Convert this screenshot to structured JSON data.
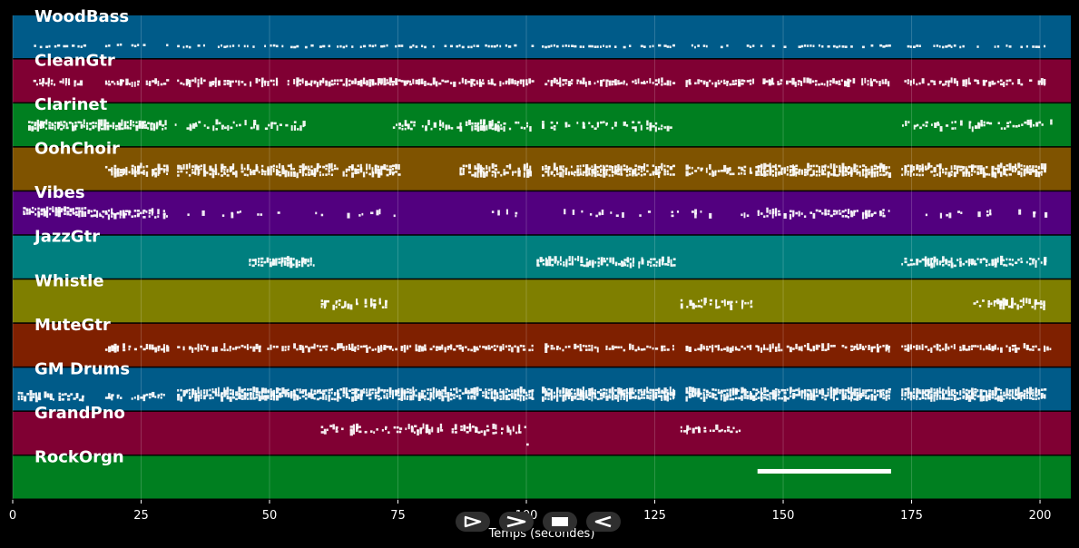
{
  "chart_data": {
    "type": "piano-roll",
    "xlabel": "Temps (secondes)",
    "xlim": [
      0,
      206
    ],
    "xticks": [
      0,
      25,
      50,
      75,
      100,
      125,
      150,
      175,
      200
    ],
    "grid": true,
    "note_color": "#ffffff",
    "tracks": [
      {
        "name": "WoodBass",
        "color": "#005b89",
        "segments": [
          [
            3,
            14,
            0.7,
            1,
            0.4
          ],
          [
            18,
            30,
            0.68,
            1,
            0.5
          ],
          [
            32,
            101,
            0.7,
            1,
            0.55
          ],
          [
            103,
            129,
            0.7,
            1,
            0.5
          ],
          [
            131,
            145,
            0.7,
            1,
            0.5
          ],
          [
            145,
            171,
            0.7,
            1,
            0.5
          ],
          [
            173,
            201,
            0.7,
            1,
            0.5
          ]
        ]
      },
      {
        "name": "CleanGtr",
        "color": "#800033",
        "segments": [
          [
            4,
            14,
            0.52,
            2,
            0.6
          ],
          [
            18,
            30,
            0.52,
            2,
            0.65
          ],
          [
            32,
            101,
            0.52,
            2,
            0.65
          ],
          [
            103,
            129,
            0.52,
            2,
            0.7
          ],
          [
            131,
            145,
            0.52,
            2,
            0.65
          ],
          [
            146,
            171,
            0.52,
            2,
            0.65
          ],
          [
            173,
            201,
            0.52,
            2,
            0.65
          ]
        ]
      },
      {
        "name": "Clarinet",
        "color": "#007f20",
        "segments": [
          [
            3,
            30,
            0.5,
            3,
            0.8
          ],
          [
            31,
            57,
            0.5,
            3,
            0.35
          ],
          [
            74,
            101,
            0.5,
            3,
            0.5
          ],
          [
            103,
            128,
            0.5,
            3,
            0.3
          ],
          [
            172,
            202,
            0.5,
            3,
            0.3
          ]
        ]
      },
      {
        "name": "OohChoir",
        "color": "#7f5300",
        "segments": [
          [
            18,
            30,
            0.52,
            4,
            0.6
          ],
          [
            32,
            75,
            0.52,
            4,
            0.6
          ],
          [
            87,
            101,
            0.52,
            4,
            0.6
          ],
          [
            103,
            129,
            0.52,
            4,
            0.75
          ],
          [
            131,
            145,
            0.52,
            3,
            0.6
          ],
          [
            145,
            171,
            0.52,
            4,
            0.85
          ],
          [
            173,
            201,
            0.52,
            4,
            0.75
          ]
        ]
      },
      {
        "name": "Vibes",
        "color": "#52007f",
        "segments": [
          [
            2,
            14,
            0.45,
            3,
            0.95
          ],
          [
            14,
            30,
            0.5,
            3,
            0.6
          ],
          [
            34,
            75,
            0.5,
            2,
            0.12
          ],
          [
            91,
            101,
            0.5,
            2,
            0.15
          ],
          [
            105,
            145,
            0.5,
            2,
            0.12
          ],
          [
            145,
            171,
            0.5,
            3,
            0.5
          ],
          [
            176,
            201,
            0.5,
            2,
            0.12
          ]
        ]
      },
      {
        "name": "JazzGtr",
        "color": "#007f7f",
        "segments": [
          [
            46,
            59,
            0.6,
            3,
            0.7
          ],
          [
            102,
            129,
            0.6,
            3,
            0.7
          ],
          [
            173,
            201,
            0.6,
            3,
            0.7
          ]
        ]
      },
      {
        "name": "Whistle",
        "color": "#7f7f00",
        "segments": [
          [
            60,
            73,
            0.55,
            3,
            0.5
          ],
          [
            130,
            144,
            0.55,
            3,
            0.5
          ],
          [
            187,
            201,
            0.55,
            3,
            0.5
          ]
        ]
      },
      {
        "name": "MuteGtr",
        "color": "#7f2000",
        "segments": [
          [
            18,
            30,
            0.55,
            2,
            0.6
          ],
          [
            32,
            101,
            0.55,
            2,
            0.6
          ],
          [
            103,
            129,
            0.55,
            2,
            0.65
          ],
          [
            131,
            145,
            0.55,
            2,
            0.6
          ],
          [
            145,
            171,
            0.55,
            2,
            0.6
          ],
          [
            173,
            202,
            0.55,
            2,
            0.6
          ]
        ]
      },
      {
        "name": "GM Drums",
        "color": "#005b89",
        "segments": [
          [
            1,
            14,
            0.65,
            3,
            0.6
          ],
          [
            18,
            30,
            0.65,
            2,
            0.55
          ],
          [
            32,
            101,
            0.6,
            4,
            0.8
          ],
          [
            103,
            129,
            0.6,
            4,
            0.95
          ],
          [
            131,
            145,
            0.6,
            4,
            0.8
          ],
          [
            145,
            171,
            0.6,
            4,
            0.8
          ],
          [
            173,
            201,
            0.6,
            4,
            0.9
          ]
        ]
      },
      {
        "name": "GrandPno",
        "color": "#800033",
        "segments": [
          [
            60,
            100,
            0.4,
            3,
            0.45
          ],
          [
            100,
            101,
            0.7,
            2,
            0.6
          ],
          [
            130,
            144,
            0.4,
            2,
            0.45
          ]
        ]
      },
      {
        "name": "RockOrgn",
        "color": "#007f20",
        "segments": [
          [
            145,
            171,
            0.35,
            1,
            1
          ]
        ]
      }
    ]
  },
  "controls": {
    "play_icon": "play-outline-icon",
    "forward_icon": "fast-forward-icon",
    "stop_icon": "stop-icon",
    "back_icon": "rewind-icon"
  }
}
